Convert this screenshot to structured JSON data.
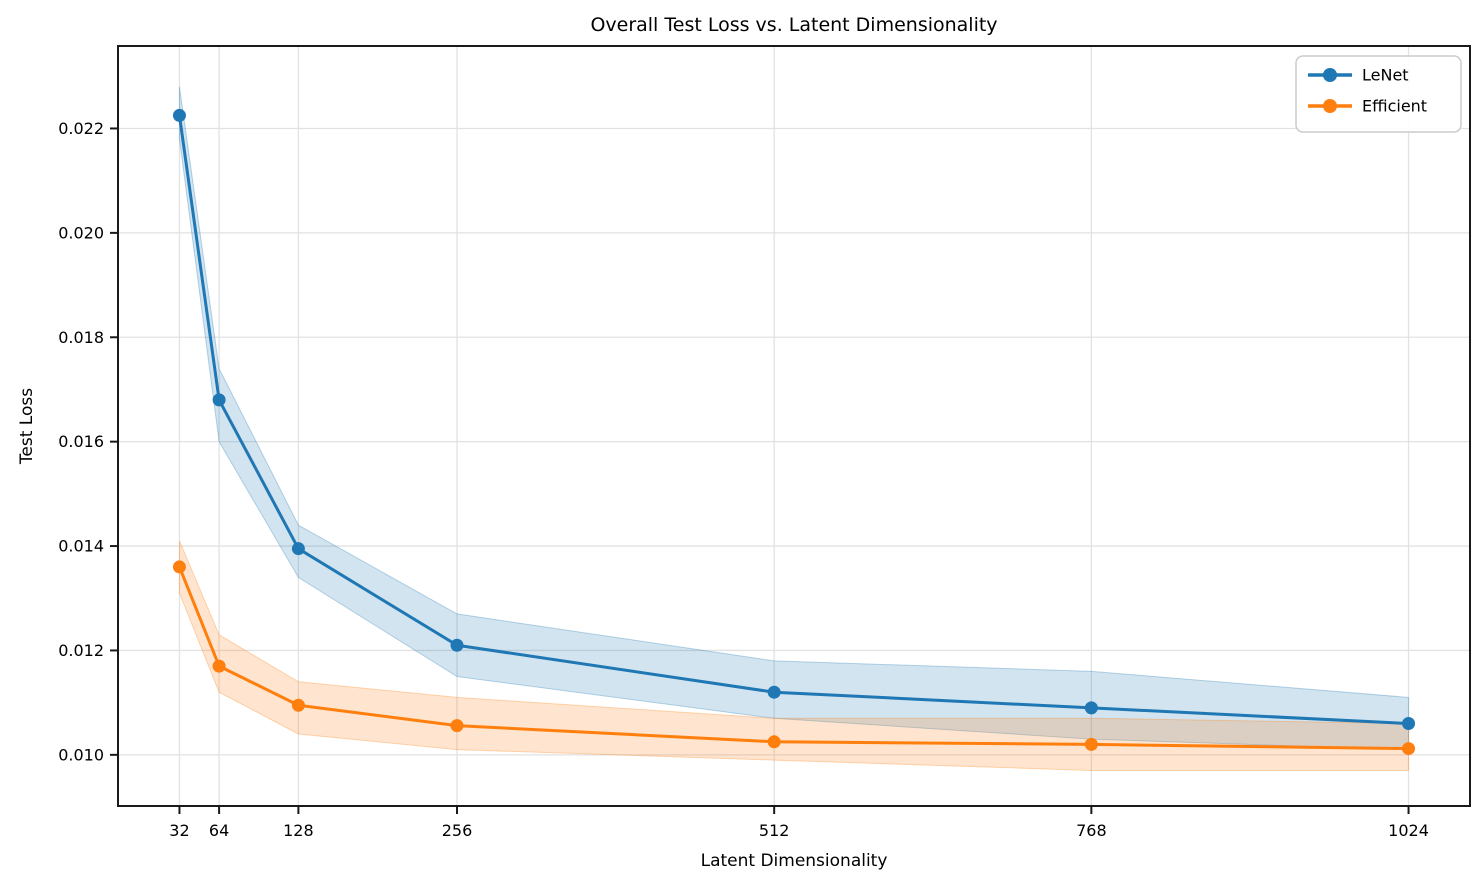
{
  "chart_data": {
    "type": "line",
    "title": "Overall Test Loss vs. Latent Dimensionality",
    "xlabel": "Latent Dimensionality",
    "ylabel": "Test Loss",
    "x": [
      32,
      64,
      128,
      256,
      512,
      768,
      1024
    ],
    "series": [
      {
        "name": "LeNet",
        "color": "#1f77b4",
        "values": [
          0.02225,
          0.0168,
          0.01395,
          0.0121,
          0.0112,
          0.0109,
          0.0106
        ],
        "band_lower": [
          0.0218,
          0.016,
          0.0134,
          0.0115,
          0.0107,
          0.0103,
          0.0101
        ],
        "band_upper": [
          0.0228,
          0.0174,
          0.0144,
          0.0127,
          0.0118,
          0.0116,
          0.0111
        ]
      },
      {
        "name": "Efficient",
        "color": "#ff7f0e",
        "values": [
          0.0136,
          0.0117,
          0.01095,
          0.01056,
          0.01025,
          0.0102,
          0.01012
        ],
        "band_lower": [
          0.0131,
          0.0112,
          0.0104,
          0.0101,
          0.0099,
          0.0097,
          0.0097
        ],
        "band_upper": [
          0.0141,
          0.0123,
          0.0114,
          0.0111,
          0.0107,
          0.0107,
          0.0106
        ]
      }
    ],
    "x_tick_values": [
      32,
      64,
      128,
      256,
      512,
      768,
      1024
    ],
    "x_tick_labels": [
      "32",
      "64",
      "128",
      "256",
      "512",
      "768",
      "1024"
    ],
    "y_tick_values": [
      0.01,
      0.012,
      0.014,
      0.016,
      0.018,
      0.02,
      0.022
    ],
    "y_tick_labels": [
      "0.010",
      "0.012",
      "0.014",
      "0.016",
      "0.018",
      "0.020",
      "0.022"
    ],
    "xlim": [
      -17.6,
      1073.6
    ],
    "ylim": [
      0.00902,
      0.02358
    ],
    "grid": true,
    "legend_position": "upper right",
    "colors": {
      "grid": "#e2e2e2",
      "spine": "#1a1a1a",
      "legend_border": "#cccccc",
      "background": "#ffffff",
      "band_opacity": 0.2
    }
  }
}
